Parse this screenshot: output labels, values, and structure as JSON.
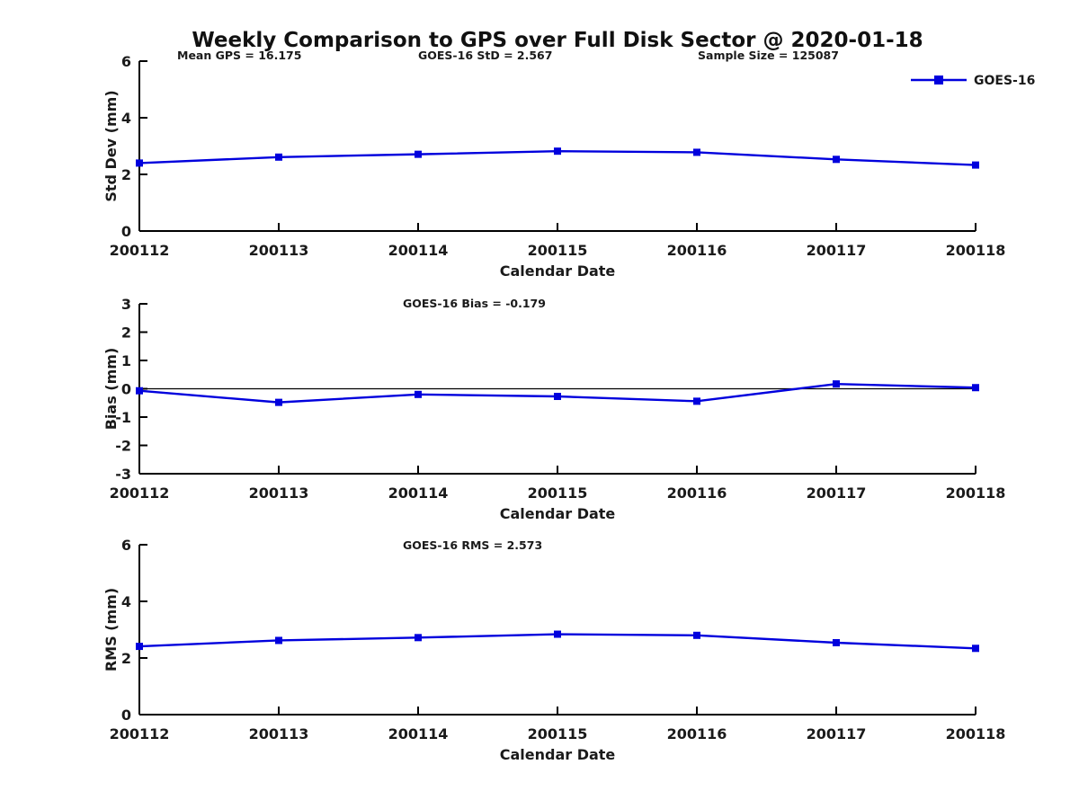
{
  "figure": {
    "title": "Weekly Comparison to GPS over Full Disk Sector @ 2020-01-18",
    "background": "#ffffff",
    "line_color": "#0000dd",
    "axis_color": "#000000",
    "text_color": "#1a1a1a"
  },
  "legend": {
    "label": "GOES-16",
    "position": "top-right",
    "frame": false
  },
  "chart_data": [
    {
      "id": "std-dev",
      "type": "line",
      "title": "",
      "xlabel": "Calendar Date",
      "ylabel": "Std Dev (mm)",
      "ylim": [
        0,
        6
      ],
      "yticks": [
        0,
        2,
        4,
        6
      ],
      "grid": false,
      "zero_line": false,
      "categories": [
        "200112",
        "200113",
        "200114",
        "200115",
        "200116",
        "200117",
        "200118"
      ],
      "annotations": [
        {
          "text": "Mean GPS = 16.175"
        },
        {
          "text": "GOES-16 StD = 2.567"
        },
        {
          "text": "Sample Size = 125087"
        }
      ],
      "series": [
        {
          "name": "GOES-16",
          "marker": "square",
          "values": [
            2.4,
            2.61,
            2.71,
            2.82,
            2.78,
            2.53,
            2.33
          ]
        }
      ]
    },
    {
      "id": "bias",
      "type": "line",
      "title": "",
      "xlabel": "Calendar Date",
      "ylabel": "Bias (mm)",
      "ylim": [
        -3,
        3
      ],
      "yticks": [
        -3,
        -2,
        -1,
        0,
        1,
        2,
        3
      ],
      "grid": false,
      "zero_line": true,
      "categories": [
        "200112",
        "200113",
        "200114",
        "200115",
        "200116",
        "200117",
        "200118"
      ],
      "annotations": [
        {
          "text": "GOES-16 Bias  = -0.179"
        }
      ],
      "series": [
        {
          "name": "GOES-16",
          "marker": "square",
          "values": [
            -0.07,
            -0.48,
            -0.2,
            -0.27,
            -0.44,
            0.17,
            0.04
          ]
        }
      ]
    },
    {
      "id": "rms",
      "type": "line",
      "title": "",
      "xlabel": "Calendar Date",
      "ylabel": "RMS (mm)",
      "ylim": [
        0,
        6
      ],
      "yticks": [
        0,
        2,
        4,
        6
      ],
      "grid": false,
      "zero_line": false,
      "categories": [
        "200112",
        "200113",
        "200114",
        "200115",
        "200116",
        "200117",
        "200118"
      ],
      "annotations": [
        {
          "text": "GOES-16 RMS = 2.573"
        }
      ],
      "series": [
        {
          "name": "GOES-16",
          "marker": "square",
          "values": [
            2.41,
            2.62,
            2.72,
            2.84,
            2.8,
            2.54,
            2.34
          ]
        }
      ]
    }
  ]
}
